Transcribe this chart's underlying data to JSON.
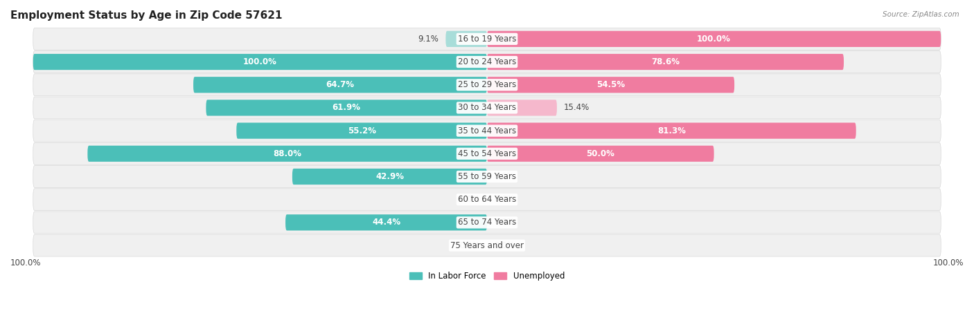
{
  "title": "Employment Status by Age in Zip Code 57621",
  "source": "Source: ZipAtlas.com",
  "categories": [
    "16 to 19 Years",
    "20 to 24 Years",
    "25 to 29 Years",
    "30 to 34 Years",
    "35 to 44 Years",
    "45 to 54 Years",
    "55 to 59 Years",
    "60 to 64 Years",
    "65 to 74 Years",
    "75 Years and over"
  ],
  "in_labor_force": [
    9.1,
    100.0,
    64.7,
    61.9,
    55.2,
    88.0,
    42.9,
    0.0,
    44.4,
    0.0
  ],
  "unemployed": [
    100.0,
    78.6,
    54.5,
    15.4,
    81.3,
    50.0,
    0.0,
    0.0,
    0.0,
    0.0
  ],
  "labor_color": "#4BBFB8",
  "labor_color_light": "#A8DDD9",
  "unemployed_color": "#F07CA0",
  "unemployed_color_light": "#F5B8CC",
  "row_bg_color": "#F0F0F0",
  "title_fontsize": 11,
  "label_fontsize": 8.5,
  "x_left_label": "100.0%",
  "x_right_label": "100.0%",
  "legend_labor": "In Labor Force",
  "legend_unemployed": "Unemployed"
}
